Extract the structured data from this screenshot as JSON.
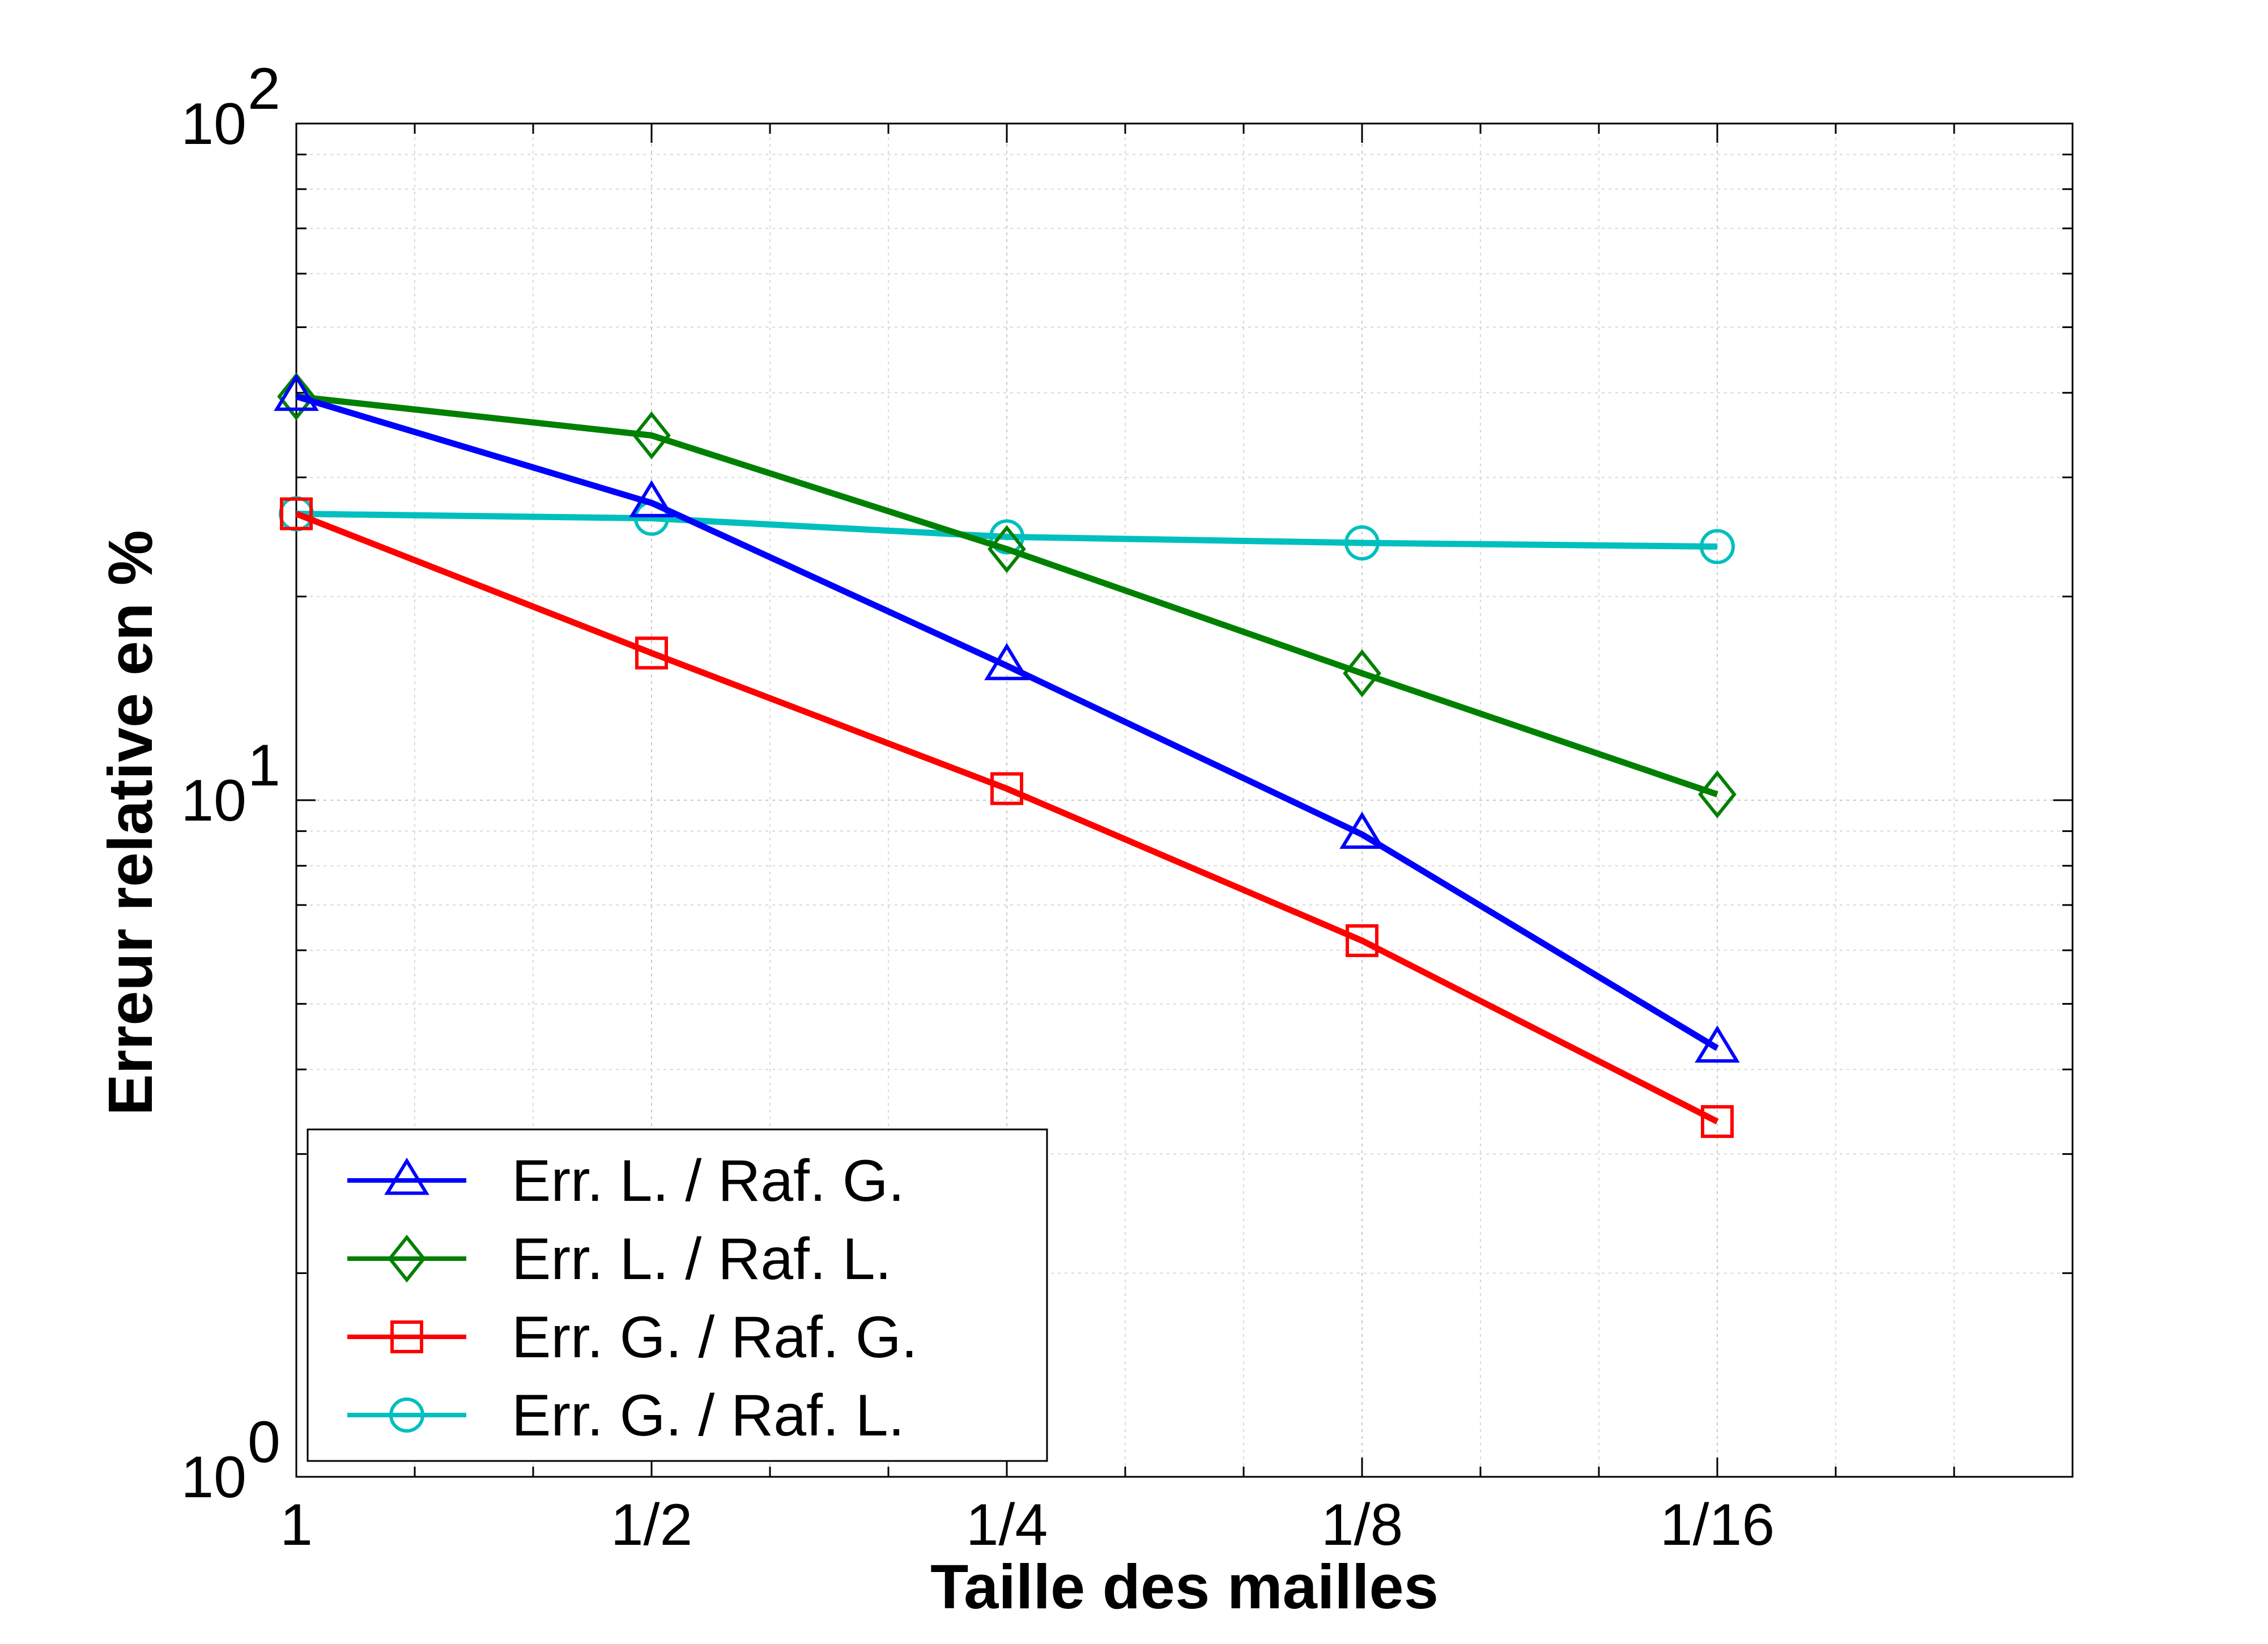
{
  "chart_data": {
    "type": "line",
    "xlabel": "Taille des mailles",
    "ylabel": "Erreur relative en %",
    "x_ticks": [
      "1",
      "1/2",
      "1/4",
      "1/8",
      "1/16"
    ],
    "x": [
      1,
      0.5,
      0.25,
      0.125,
      0.0625
    ],
    "x_scale": "log2-reversed",
    "xlim": [
      1,
      0.03125
    ],
    "y_scale": "log",
    "ylim": [
      1,
      100
    ],
    "y_ticks": [
      {
        "base": "10",
        "exp": "0",
        "value": 1
      },
      {
        "base": "10",
        "exp": "1",
        "value": 10
      },
      {
        "base": "10",
        "exp": "2",
        "value": 100
      }
    ],
    "grid": true,
    "legend_position": "bottom-left",
    "series": [
      {
        "name": "Err. L. / Raf. G.",
        "color": "#0000ff",
        "marker": "triangle",
        "values": [
          39.5,
          27.5,
          15.8,
          8.9,
          4.3
        ]
      },
      {
        "name": "Err. L. / Raf. L.",
        "color": "#008000",
        "marker": "diamond",
        "values": [
          39.5,
          34.6,
          23.5,
          15.4,
          10.2
        ]
      },
      {
        "name": "Err. G. / Raf. G.",
        "color": "#ff0000",
        "marker": "square",
        "values": [
          26.5,
          16.5,
          10.4,
          6.2,
          3.35
        ]
      },
      {
        "name": "Err. G. / Raf. L.",
        "color": "#00bfbf",
        "marker": "circle",
        "values": [
          26.5,
          26.1,
          24.5,
          24.0,
          23.7
        ]
      }
    ]
  }
}
